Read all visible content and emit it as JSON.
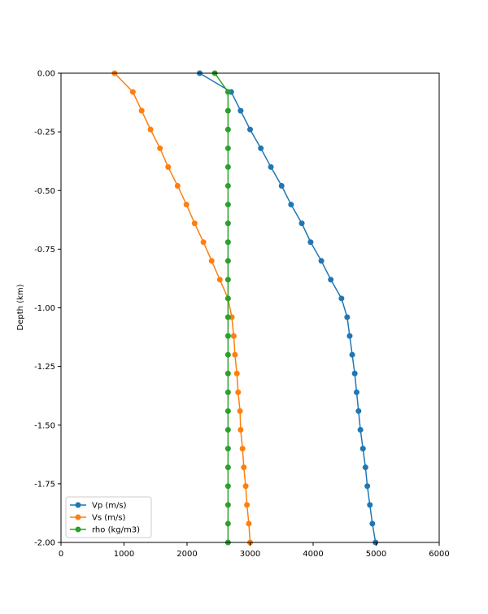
{
  "chart_data": {
    "type": "line",
    "title": "",
    "xlabel": "",
    "ylabel": "Depth (km)",
    "xlim": [
      0,
      6000
    ],
    "ylim": [
      -2.0,
      0.0
    ],
    "grid": false,
    "legend_position": "bottom-left",
    "x_ticks": [
      "0",
      "1000",
      "2000",
      "3000",
      "4000",
      "5000",
      "6000"
    ],
    "y_ticks": [
      "0.00",
      "-0.25",
      "-0.50",
      "-0.75",
      "-1.00",
      "-1.25",
      "-1.50",
      "-1.75",
      "-2.00"
    ],
    "depth": [
      0,
      -0.08,
      -0.16,
      -0.24,
      -0.32,
      -0.4,
      -0.48,
      -0.56,
      -0.64,
      -0.72,
      -0.8,
      -0.88,
      -0.96,
      -1.04,
      -1.12,
      -1.2,
      -1.28,
      -1.36,
      -1.44,
      -1.52,
      -1.6,
      -1.68,
      -1.76,
      -1.84,
      -1.92,
      -2.0
    ],
    "series": [
      {
        "name": "Vp (m/s)",
        "color": "#1f77b4",
        "values": [
          2200,
          2700,
          2850,
          3000,
          3170,
          3330,
          3500,
          3650,
          3820,
          3960,
          4130,
          4280,
          4450,
          4540,
          4580,
          4620,
          4660,
          4690,
          4720,
          4750,
          4790,
          4830,
          4860,
          4900,
          4940,
          4990
        ]
      },
      {
        "name": "Vs (m/s)",
        "color": "#ff7f0e",
        "values": [
          850,
          1140,
          1280,
          1420,
          1570,
          1700,
          1850,
          1990,
          2120,
          2260,
          2390,
          2520,
          2650,
          2710,
          2740,
          2760,
          2790,
          2810,
          2840,
          2850,
          2880,
          2900,
          2930,
          2950,
          2980,
          3000
        ]
      },
      {
        "name": "rho (kg/m3)",
        "color": "#2ca02c",
        "values": [
          2440,
          2650,
          2650,
          2650,
          2650,
          2650,
          2650,
          2650,
          2650,
          2650,
          2650,
          2650,
          2650,
          2650,
          2650,
          2650,
          2650,
          2650,
          2650,
          2650,
          2650,
          2650,
          2650,
          2650,
          2650,
          2650
        ]
      }
    ]
  }
}
